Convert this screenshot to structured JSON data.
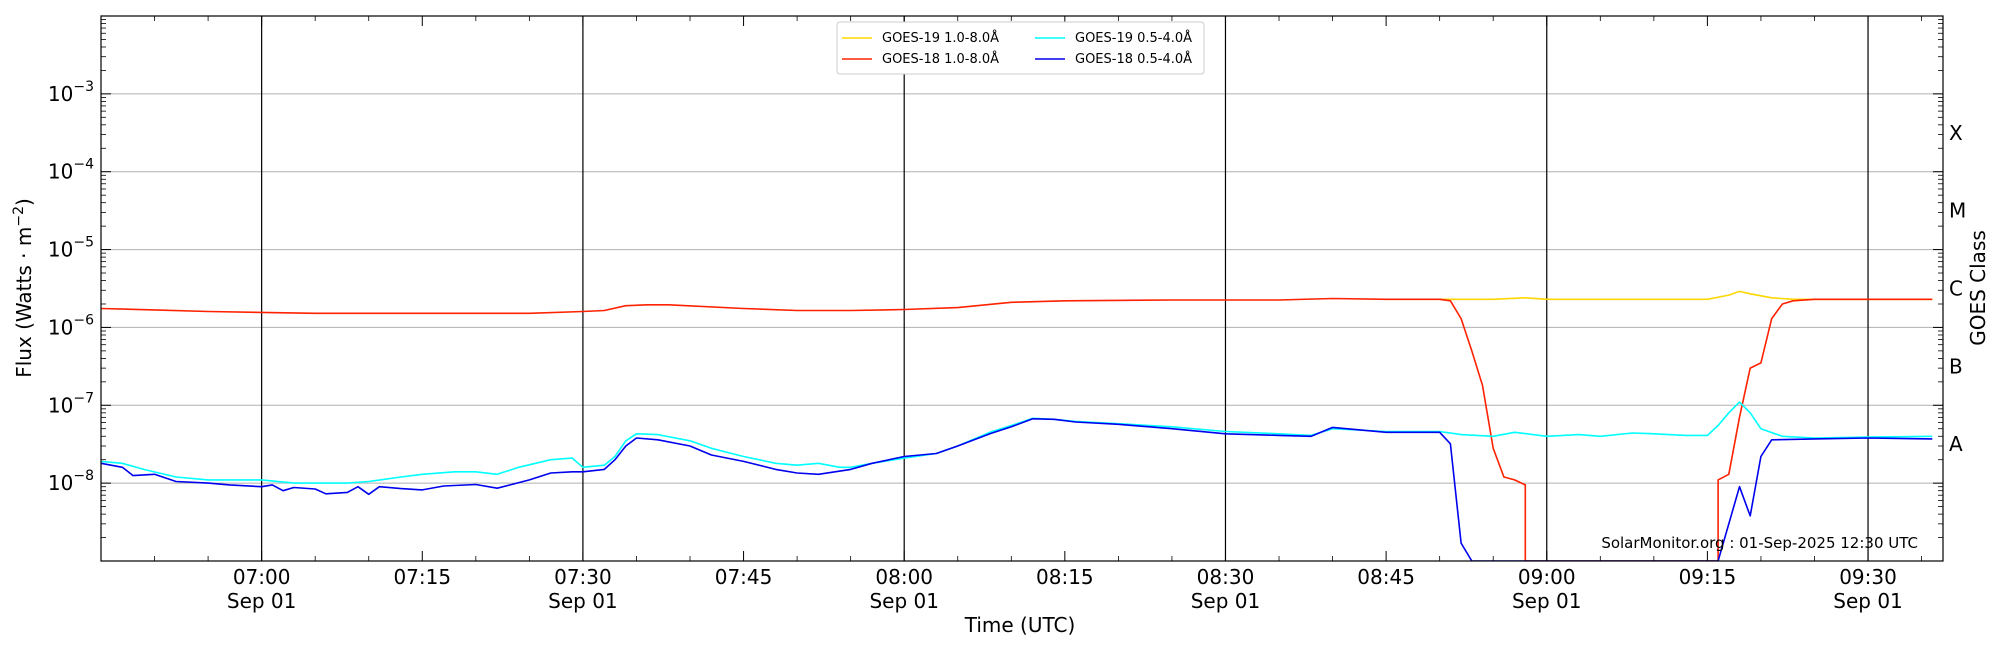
{
  "chart_data": {
    "type": "line",
    "xlabel": "Time (UTC)",
    "ylabel_main": "Flux (Watts · m",
    "ylabel_sup": "−2",
    "ylabel_close": ")",
    "ylabel_right": "GOES Class",
    "y_scale": "log",
    "xlim": [
      "06:45",
      "09:37"
    ],
    "ylim": [
      1e-09,
      0.01
    ],
    "grid": "horizontal at decades; vertical at half-hours",
    "x_ticks": [
      {
        "time": "07:00",
        "date": "Sep 01"
      },
      {
        "time": "07:15",
        "date": ""
      },
      {
        "time": "07:30",
        "date": "Sep 01"
      },
      {
        "time": "07:45",
        "date": ""
      },
      {
        "time": "08:00",
        "date": "Sep 01"
      },
      {
        "time": "08:15",
        "date": ""
      },
      {
        "time": "08:30",
        "date": "Sep 01"
      },
      {
        "time": "08:45",
        "date": ""
      },
      {
        "time": "09:00",
        "date": "Sep 01"
      },
      {
        "time": "09:15",
        "date": ""
      },
      {
        "time": "09:30",
        "date": "Sep 01"
      }
    ],
    "y_ticks": [
      {
        "exp": -8,
        "label": "10",
        "sup": "−8"
      },
      {
        "exp": -7,
        "label": "10",
        "sup": "−7"
      },
      {
        "exp": -6,
        "label": "10",
        "sup": "−6"
      },
      {
        "exp": -5,
        "label": "10",
        "sup": "−5"
      },
      {
        "exp": -4,
        "label": "10",
        "sup": "−4"
      },
      {
        "exp": -3,
        "label": "10",
        "sup": "−3"
      }
    ],
    "goes_classes": [
      {
        "label": "A",
        "flux": 1e-08
      },
      {
        "label": "B",
        "flux": 1e-07
      },
      {
        "label": "C",
        "flux": 1e-06
      },
      {
        "label": "M",
        "flux": 1e-05
      },
      {
        "label": "X",
        "flux": 0.0001
      }
    ],
    "legend_position": "top-center",
    "series": [
      {
        "name": "GOES-19 1.0-8.0Å",
        "color": "#ffd700",
        "points": [
          [
            "08:50",
            2.3e-06
          ],
          [
            "08:55",
            2.3e-06
          ],
          [
            "08:58",
            2.4e-06
          ],
          [
            "09:00",
            2.3e-06
          ],
          [
            "09:05",
            2.3e-06
          ],
          [
            "09:10",
            2.3e-06
          ],
          [
            "09:15",
            2.3e-06
          ],
          [
            "09:17",
            2.6e-06
          ],
          [
            "09:18",
            2.9e-06
          ],
          [
            "09:19",
            2.7e-06
          ],
          [
            "09:21",
            2.4e-06
          ],
          [
            "09:23",
            2.3e-06
          ],
          [
            "09:30",
            2.3e-06
          ],
          [
            "09:36",
            2.3e-06
          ]
        ]
      },
      {
        "name": "GOES-18 1.0-8.0Å",
        "color": "#ff2200",
        "points": [
          [
            "06:45",
            1.75e-06
          ],
          [
            "06:50",
            1.68e-06
          ],
          [
            "06:55",
            1.6e-06
          ],
          [
            "07:00",
            1.56e-06
          ],
          [
            "07:05",
            1.52e-06
          ],
          [
            "07:15",
            1.52e-06
          ],
          [
            "07:25",
            1.52e-06
          ],
          [
            "07:30",
            1.6e-06
          ],
          [
            "07:32",
            1.65e-06
          ],
          [
            "07:34",
            1.9e-06
          ],
          [
            "07:36",
            1.95e-06
          ],
          [
            "07:38",
            1.95e-06
          ],
          [
            "07:45",
            1.75e-06
          ],
          [
            "07:50",
            1.65e-06
          ],
          [
            "07:55",
            1.65e-06
          ],
          [
            "08:00",
            1.7e-06
          ],
          [
            "08:05",
            1.8e-06
          ],
          [
            "08:10",
            2.1e-06
          ],
          [
            "08:15",
            2.2e-06
          ],
          [
            "08:25",
            2.25e-06
          ],
          [
            "08:35",
            2.25e-06
          ],
          [
            "08:40",
            2.35e-06
          ],
          [
            "08:45",
            2.3e-06
          ],
          [
            "08:50",
            2.3e-06
          ],
          [
            "08:51",
            2.2e-06
          ],
          [
            "08:52",
            1.3e-06
          ],
          [
            "08:53",
            5e-07
          ],
          [
            "08:54",
            1.8e-07
          ],
          [
            "08:55",
            2.8e-08
          ],
          [
            "08:56",
            1.2e-08
          ],
          [
            "08:57",
            1.1e-08
          ],
          [
            "08:58",
            9.5e-09
          ],
          [
            "08:58",
            1e-09
          ],
          [
            "09:16",
            1e-09
          ],
          [
            "09:16",
            1.1e-08
          ],
          [
            "09:17",
            1.3e-08
          ],
          [
            "09:18",
            7e-08
          ],
          [
            "09:19",
            3e-07
          ],
          [
            "09:20",
            3.5e-07
          ],
          [
            "09:21",
            1.3e-06
          ],
          [
            "09:22",
            2e-06
          ],
          [
            "09:23",
            2.2e-06
          ],
          [
            "09:25",
            2.3e-06
          ],
          [
            "09:30",
            2.3e-06
          ],
          [
            "09:36",
            2.3e-06
          ]
        ]
      },
      {
        "name": "GOES-19 0.5-4.0Å",
        "color": "#00ffff",
        "points": [
          [
            "06:45",
            1.9e-08
          ],
          [
            "06:47",
            1.8e-08
          ],
          [
            "06:49",
            1.5e-08
          ],
          [
            "06:52",
            1.2e-08
          ],
          [
            "06:55",
            1.1e-08
          ],
          [
            "07:00",
            1.1e-08
          ],
          [
            "07:03",
            1e-08
          ],
          [
            "07:05",
            1e-08
          ],
          [
            "07:08",
            1e-08
          ],
          [
            "07:10",
            1.05e-08
          ],
          [
            "07:13",
            1.2e-08
          ],
          [
            "07:15",
            1.3e-08
          ],
          [
            "07:18",
            1.4e-08
          ],
          [
            "07:20",
            1.4e-08
          ],
          [
            "07:22",
            1.3e-08
          ],
          [
            "07:24",
            1.6e-08
          ],
          [
            "07:27",
            2e-08
          ],
          [
            "07:29",
            2.1e-08
          ],
          [
            "07:30",
            1.6e-08
          ],
          [
            "07:32",
            1.7e-08
          ],
          [
            "07:33",
            2.2e-08
          ],
          [
            "07:34",
            3.5e-08
          ],
          [
            "07:35",
            4.3e-08
          ],
          [
            "07:37",
            4.2e-08
          ],
          [
            "07:40",
            3.5e-08
          ],
          [
            "07:42",
            2.8e-08
          ],
          [
            "07:45",
            2.2e-08
          ],
          [
            "07:48",
            1.8e-08
          ],
          [
            "07:50",
            1.7e-08
          ],
          [
            "07:52",
            1.8e-08
          ],
          [
            "07:54",
            1.6e-08
          ],
          [
            "07:55",
            1.6e-08
          ],
          [
            "07:57",
            1.8e-08
          ],
          [
            "08:00",
            2.1e-08
          ],
          [
            "08:03",
            2.4e-08
          ],
          [
            "08:05",
            3e-08
          ],
          [
            "08:08",
            4.5e-08
          ],
          [
            "08:10",
            5.5e-08
          ],
          [
            "08:12",
            6.8e-08
          ],
          [
            "08:14",
            6.6e-08
          ],
          [
            "08:16",
            6.2e-08
          ],
          [
            "08:20",
            5.8e-08
          ],
          [
            "08:25",
            5.3e-08
          ],
          [
            "08:30",
            4.6e-08
          ],
          [
            "08:35",
            4.3e-08
          ],
          [
            "08:38",
            4.1e-08
          ],
          [
            "08:40",
            5e-08
          ],
          [
            "08:45",
            4.6e-08
          ],
          [
            "08:50",
            4.6e-08
          ],
          [
            "08:52",
            4.2e-08
          ],
          [
            "08:55",
            4e-08
          ],
          [
            "08:57",
            4.5e-08
          ],
          [
            "09:00",
            4e-08
          ],
          [
            "09:03",
            4.2e-08
          ],
          [
            "09:05",
            4e-08
          ],
          [
            "09:08",
            4.4e-08
          ],
          [
            "09:10",
            4.3e-08
          ],
          [
            "09:13",
            4.1e-08
          ],
          [
            "09:15",
            4.1e-08
          ],
          [
            "09:16",
            5.5e-08
          ],
          [
            "09:17",
            8e-08
          ],
          [
            "09:18",
            1.1e-07
          ],
          [
            "09:19",
            8e-08
          ],
          [
            "09:20",
            5e-08
          ],
          [
            "09:22",
            4e-08
          ],
          [
            "09:25",
            3.8e-08
          ],
          [
            "09:30",
            3.9e-08
          ],
          [
            "09:36",
            4e-08
          ]
        ]
      },
      {
        "name": "GOES-18 0.5-4.0Å",
        "color": "#0000ee",
        "points": [
          [
            "06:45",
            1.8e-08
          ],
          [
            "06:47",
            1.6e-08
          ],
          [
            "06:48",
            1.25e-08
          ],
          [
            "06:50",
            1.3e-08
          ],
          [
            "06:52",
            1.05e-08
          ],
          [
            "06:55",
            1e-08
          ],
          [
            "06:57",
            9.5e-09
          ],
          [
            "07:00",
            9e-09
          ],
          [
            "07:01",
            9.5e-09
          ],
          [
            "07:02",
            8e-09
          ],
          [
            "07:03",
            8.8e-09
          ],
          [
            "07:05",
            8.4e-09
          ],
          [
            "07:06",
            7.3e-09
          ],
          [
            "07:08",
            7.6e-09
          ],
          [
            "07:09",
            9e-09
          ],
          [
            "07:10",
            7.2e-09
          ],
          [
            "07:11",
            9e-09
          ],
          [
            "07:13",
            8.5e-09
          ],
          [
            "07:15",
            8.2e-09
          ],
          [
            "07:17",
            9.2e-09
          ],
          [
            "07:20",
            9.6e-09
          ],
          [
            "07:22",
            8.6e-09
          ],
          [
            "07:25",
            1.1e-08
          ],
          [
            "07:27",
            1.35e-08
          ],
          [
            "07:29",
            1.4e-08
          ],
          [
            "07:30",
            1.4e-08
          ],
          [
            "07:32",
            1.5e-08
          ],
          [
            "07:33",
            2e-08
          ],
          [
            "07:34",
            3e-08
          ],
          [
            "07:35",
            3.8e-08
          ],
          [
            "07:37",
            3.6e-08
          ],
          [
            "07:40",
            3e-08
          ],
          [
            "07:42",
            2.3e-08
          ],
          [
            "07:45",
            1.9e-08
          ],
          [
            "07:48",
            1.5e-08
          ],
          [
            "07:50",
            1.35e-08
          ],
          [
            "07:52",
            1.3e-08
          ],
          [
            "07:55",
            1.5e-08
          ],
          [
            "07:57",
            1.8e-08
          ],
          [
            "08:00",
            2.2e-08
          ],
          [
            "08:03",
            2.4e-08
          ],
          [
            "08:05",
            3e-08
          ],
          [
            "08:08",
            4.3e-08
          ],
          [
            "08:10",
            5.3e-08
          ],
          [
            "08:12",
            6.7e-08
          ],
          [
            "08:14",
            6.6e-08
          ],
          [
            "08:16",
            6.1e-08
          ],
          [
            "08:20",
            5.7e-08
          ],
          [
            "08:25",
            5e-08
          ],
          [
            "08:30",
            4.3e-08
          ],
          [
            "08:35",
            4.1e-08
          ],
          [
            "08:38",
            4e-08
          ],
          [
            "08:40",
            5.2e-08
          ],
          [
            "08:45",
            4.5e-08
          ],
          [
            "08:50",
            4.5e-08
          ],
          [
            "08:51",
            3.2e-08
          ],
          [
            "08:52",
            1.7e-09
          ],
          [
            "08:53",
            1e-09
          ],
          [
            "09:16",
            1e-09
          ],
          [
            "09:17",
            3e-09
          ],
          [
            "09:18",
            9e-09
          ],
          [
            "09:19",
            3.8e-09
          ],
          [
            "09:20",
            2.2e-08
          ],
          [
            "09:21",
            3.6e-08
          ],
          [
            "09:25",
            3.7e-08
          ],
          [
            "09:30",
            3.8e-08
          ],
          [
            "09:36",
            3.7e-08
          ]
        ]
      }
    ],
    "credit": "SolarMonitor.org : 01-Sep-2025 12:30 UTC"
  }
}
